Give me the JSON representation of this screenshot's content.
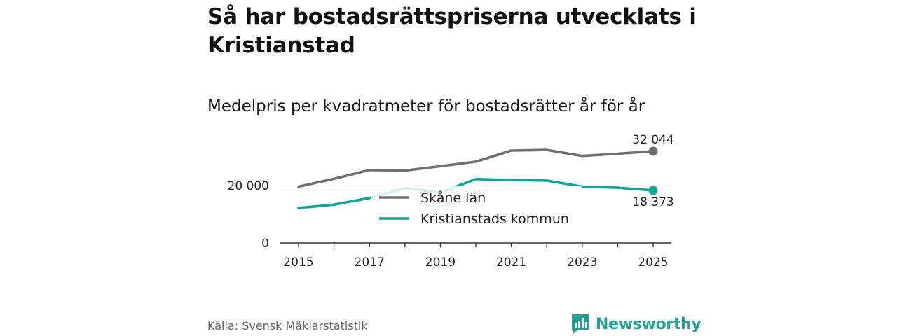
{
  "title": "Så har bostadsrättspriserna utvecklats i Kristianstad",
  "subtitle": "Medelpris per kvadratmeter för bostadsrätter år för år",
  "source": "Källa: Svensk Mäklarstatistik",
  "brand": "Newsworthy",
  "colors": {
    "skane": "#707074",
    "kristianstad": "#13a398",
    "axis": "#333333",
    "grid": "#dddddd",
    "brand": "#22a094"
  },
  "chart_data": {
    "type": "line",
    "title": "Så har bostadsrättspriserna utvecklats i Kristianstad",
    "subtitle": "Medelpris per kvadratmeter för bostadsrätter år för år",
    "xlabel": "",
    "ylabel": "",
    "x": [
      2015,
      2016,
      2017,
      2018,
      2019,
      2020,
      2021,
      2022,
      2023,
      2024,
      2025
    ],
    "xlim": [
      2014.5,
      2025.5
    ],
    "ylim": [
      0,
      32044
    ],
    "x_ticks": [
      "2015",
      "2017",
      "2019",
      "2021",
      "2023",
      "2025"
    ],
    "y_ticks": [
      {
        "value": 0,
        "label": "0"
      },
      {
        "value": 20000,
        "label": "20 000"
      }
    ],
    "grid": "horizontal at 20 000",
    "legend_position": "center",
    "series": [
      {
        "name": "Skåne län",
        "color_key": "skane",
        "values": [
          19700,
          22400,
          25500,
          25300,
          26800,
          28400,
          32300,
          32500,
          30400,
          31200,
          32044
        ],
        "end_label": "32 044"
      },
      {
        "name": "Kristianstads kommun",
        "color_key": "kristianstad",
        "values": [
          12200,
          13400,
          15700,
          19200,
          17600,
          22300,
          22000,
          21800,
          19700,
          19300,
          18373
        ],
        "end_label": "18 373"
      }
    ]
  }
}
